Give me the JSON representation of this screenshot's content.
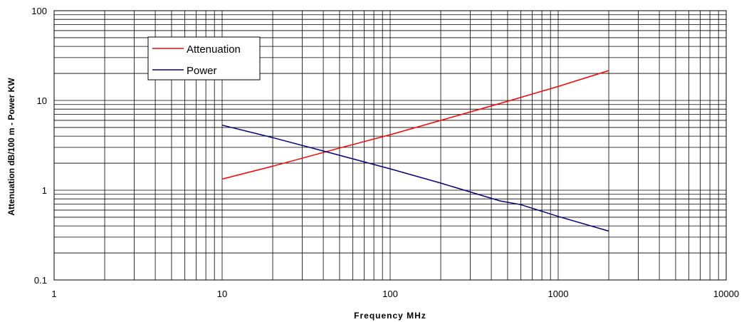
{
  "chart_data": {
    "type": "line",
    "xlabel": "Frequency MHz",
    "ylabel": "Attenuation dB/100 m - Power KW",
    "x_scale": "log",
    "y_scale": "log",
    "xlim": [
      1,
      10000
    ],
    "ylim": [
      0.1,
      100
    ],
    "x_tick_labels": [
      "1",
      "10",
      "100",
      "1000",
      "10000"
    ],
    "y_tick_labels": [
      "0.1",
      "1",
      "10",
      "100"
    ],
    "grid": true,
    "legend_position": "top-left",
    "series": [
      {
        "name": "Attenuation",
        "color": "#ff0000",
        "x": [
          10,
          20,
          50,
          100,
          200,
          500,
          1000,
          2000
        ],
        "y": [
          1.33,
          1.85,
          2.95,
          4.15,
          6.0,
          9.8,
          14.3,
          21.5
        ]
      },
      {
        "name": "Power",
        "color": "#000080",
        "x": [
          10,
          20,
          50,
          100,
          200,
          450,
          600,
          1000,
          2000
        ],
        "y": [
          5.3,
          3.85,
          2.45,
          1.73,
          1.2,
          0.76,
          0.69,
          0.51,
          0.35
        ]
      }
    ]
  }
}
